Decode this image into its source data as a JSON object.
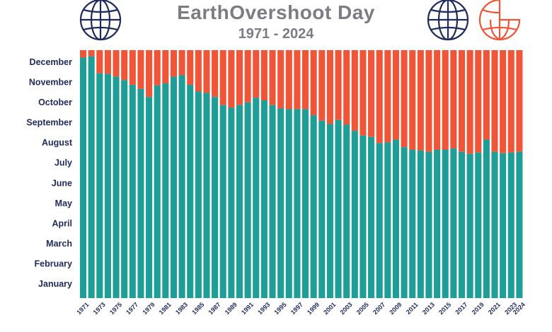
{
  "header": {
    "title": "EarthOvershoot Day",
    "subtitle": "1971 - 2024"
  },
  "icons": {
    "left": "globe-icon",
    "right_1": "globe-icon",
    "right_2": "partial-globe-icon"
  },
  "colors": {
    "earth_budget": "#1f9e97",
    "overshoot": "#f05538",
    "text": "#1f2a5c",
    "title": "#7c7c84"
  },
  "chart_data": {
    "type": "bar",
    "stacked": true,
    "x": [
      1971,
      1972,
      1973,
      1974,
      1975,
      1976,
      1977,
      1978,
      1979,
      1980,
      1981,
      1982,
      1983,
      1984,
      1985,
      1986,
      1987,
      1988,
      1989,
      1990,
      1991,
      1992,
      1993,
      1994,
      1995,
      1996,
      1997,
      1998,
      1999,
      2000,
      2001,
      2002,
      2003,
      2004,
      2005,
      2006,
      2007,
      2008,
      2009,
      2010,
      2011,
      2012,
      2013,
      2014,
      2015,
      2016,
      2017,
      2018,
      2019,
      2020,
      2021,
      2022,
      2023,
      2024
    ],
    "x_tick_labels": [
      "1971",
      "1973",
      "1975",
      "1977",
      "1979",
      "1981",
      "1983",
      "1985",
      "1987",
      "1989",
      "1991",
      "1993",
      "1995",
      "1997",
      "1999",
      "2001",
      "2003",
      "2005",
      "2007",
      "2009",
      "2011",
      "2013",
      "2015",
      "2017",
      "2019",
      "2021",
      "2023",
      "2024"
    ],
    "y_tick_labels": [
      "January",
      "February",
      "March",
      "April",
      "May",
      "June",
      "July",
      "August",
      "September",
      "October",
      "November",
      "December"
    ],
    "ylim_day_of_year": [
      0,
      366
    ],
    "series": [
      {
        "values_day_of_year": [
          355,
          357,
          332,
          331,
          327,
          322,
          315,
          309,
          297,
          314,
          317,
          327,
          329,
          315,
          305,
          303,
          297,
          285,
          281,
          285,
          289,
          296,
          292,
          285,
          280,
          279,
          279,
          279,
          270,
          262,
          257,
          263,
          256,
          247,
          240,
          238,
          229,
          230,
          234,
          223,
          219,
          218,
          216,
          219,
          219,
          221,
          216,
          213,
          215,
          234,
          216,
          214,
          215,
          216
        ]
      },
      {}
    ]
  }
}
